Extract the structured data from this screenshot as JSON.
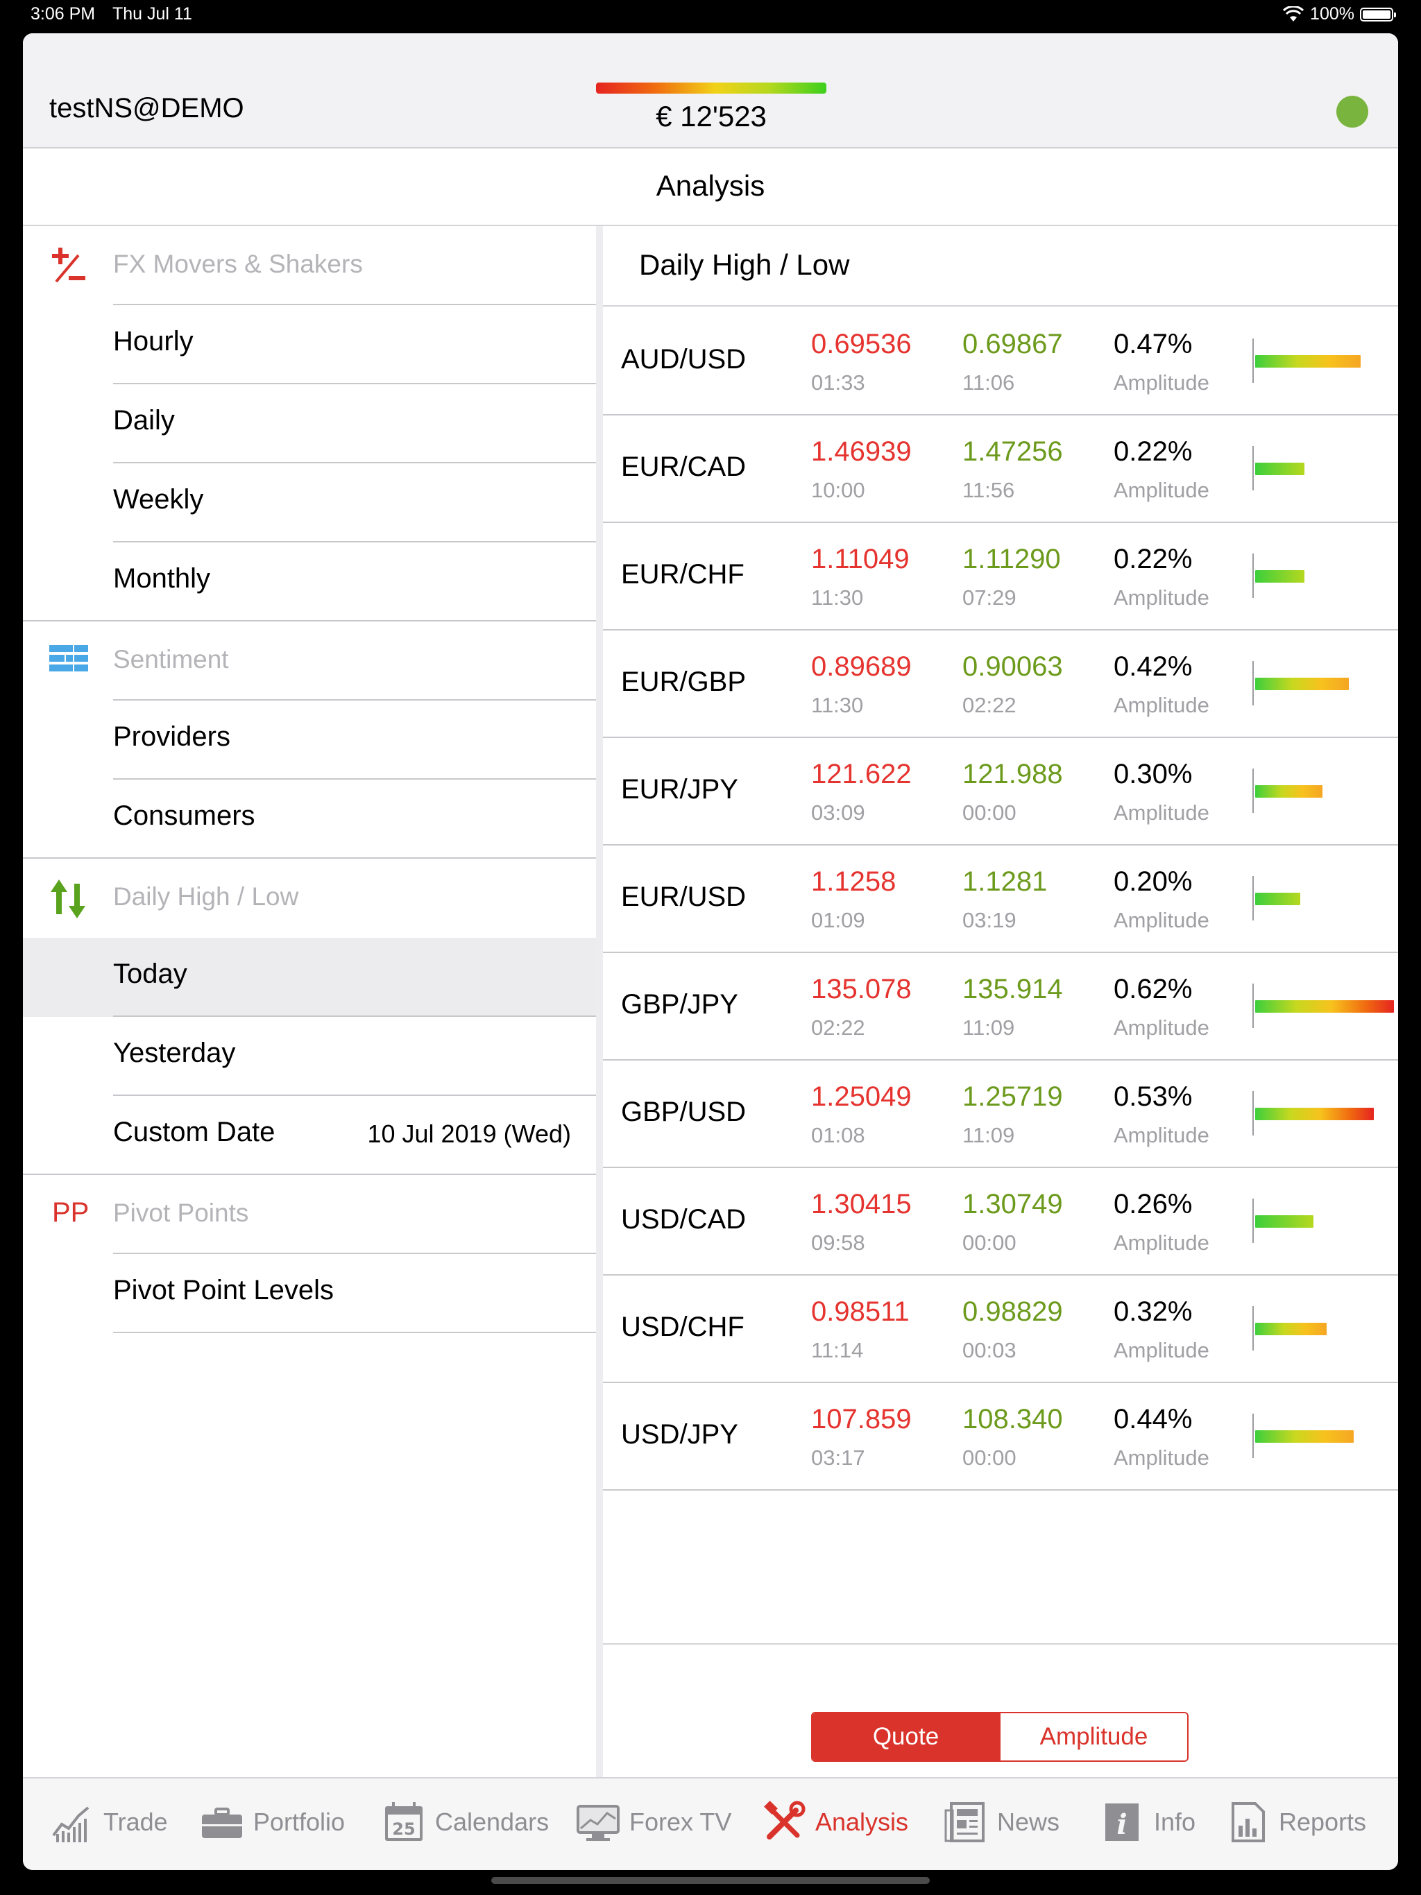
{
  "status_bar": {
    "time": "3:06 PM",
    "date": "Thu Jul 11",
    "battery": "100%"
  },
  "header": {
    "account": "testNS@DEMO",
    "balance": "€ 12'523",
    "connection_color": "#78b43e"
  },
  "title": "Analysis",
  "sidebar": {
    "sections": [
      {
        "title": "FX Movers & Shakers",
        "icon": "plus-minus-icon",
        "items": [
          "Hourly",
          "Daily",
          "Weekly",
          "Monthly"
        ]
      },
      {
        "title": "Sentiment",
        "icon": "sentiment-icon",
        "items": [
          "Providers",
          "Consumers"
        ]
      },
      {
        "title": "Daily High / Low",
        "icon": "up-down-arrows-icon",
        "items": [
          "Today",
          "Yesterday",
          "Custom Date"
        ],
        "custom_date_value": "10 Jul 2019 (Wed)",
        "selected": "Today"
      },
      {
        "title": "Pivot Points",
        "icon_text": "PP",
        "items": [
          "Pivot Point Levels"
        ]
      }
    ]
  },
  "panel": {
    "title": "Daily High / Low",
    "amplitude_label": "Amplitude",
    "rows": [
      {
        "pair": "AUD/USD",
        "low": "0.69536",
        "low_time": "01:33",
        "high": "0.69867",
        "high_time": "11:06",
        "pct": "0.47%",
        "amplitude": 0.47
      },
      {
        "pair": "EUR/CAD",
        "low": "1.46939",
        "low_time": "10:00",
        "high": "1.47256",
        "high_time": "11:56",
        "pct": "0.22%",
        "amplitude": 0.22
      },
      {
        "pair": "EUR/CHF",
        "low": "1.11049",
        "low_time": "11:30",
        "high": "1.11290",
        "high_time": "07:29",
        "pct": "0.22%",
        "amplitude": 0.22
      },
      {
        "pair": "EUR/GBP",
        "low": "0.89689",
        "low_time": "11:30",
        "high": "0.90063",
        "high_time": "02:22",
        "pct": "0.42%",
        "amplitude": 0.42
      },
      {
        "pair": "EUR/JPY",
        "low": "121.622",
        "low_time": "03:09",
        "high": "121.988",
        "high_time": "00:00",
        "pct": "0.30%",
        "amplitude": 0.3
      },
      {
        "pair": "EUR/USD",
        "low": "1.1258",
        "low_time": "01:09",
        "high": "1.1281",
        "high_time": "03:19",
        "pct": "0.20%",
        "amplitude": 0.2
      },
      {
        "pair": "GBP/JPY",
        "low": "135.078",
        "low_time": "02:22",
        "high": "135.914",
        "high_time": "11:09",
        "pct": "0.62%",
        "amplitude": 0.62
      },
      {
        "pair": "GBP/USD",
        "low": "1.25049",
        "low_time": "01:08",
        "high": "1.25719",
        "high_time": "11:09",
        "pct": "0.53%",
        "amplitude": 0.53
      },
      {
        "pair": "USD/CAD",
        "low": "1.30415",
        "low_time": "09:58",
        "high": "1.30749",
        "high_time": "00:00",
        "pct": "0.26%",
        "amplitude": 0.26
      },
      {
        "pair": "USD/CHF",
        "low": "0.98511",
        "low_time": "11:14",
        "high": "0.98829",
        "high_time": "00:03",
        "pct": "0.32%",
        "amplitude": 0.32
      },
      {
        "pair": "USD/JPY",
        "low": "107.859",
        "low_time": "03:17",
        "high": "108.340",
        "high_time": "00:00",
        "pct": "0.44%",
        "amplitude": 0.44
      }
    ],
    "toggle": {
      "options": [
        "Quote",
        "Amplitude"
      ],
      "selected": "Quote"
    }
  },
  "tabs": [
    {
      "label": "Trade",
      "icon": "chart-icon"
    },
    {
      "label": "Portfolio",
      "icon": "briefcase-icon"
    },
    {
      "label": "Calendars",
      "icon": "calendar-icon",
      "icon_text": "25"
    },
    {
      "label": "Forex TV",
      "icon": "monitor-icon"
    },
    {
      "label": "Analysis",
      "icon": "tools-icon",
      "active": true
    },
    {
      "label": "News",
      "icon": "newspaper-icon"
    },
    {
      "label": "Info",
      "icon": "info-icon",
      "icon_text": "i"
    },
    {
      "label": "Reports",
      "icon": "report-icon"
    }
  ],
  "colors": {
    "accent": "#d9332b",
    "low": "#e5332f",
    "high": "#6c9a1c",
    "muted": "#a0a0a4"
  }
}
